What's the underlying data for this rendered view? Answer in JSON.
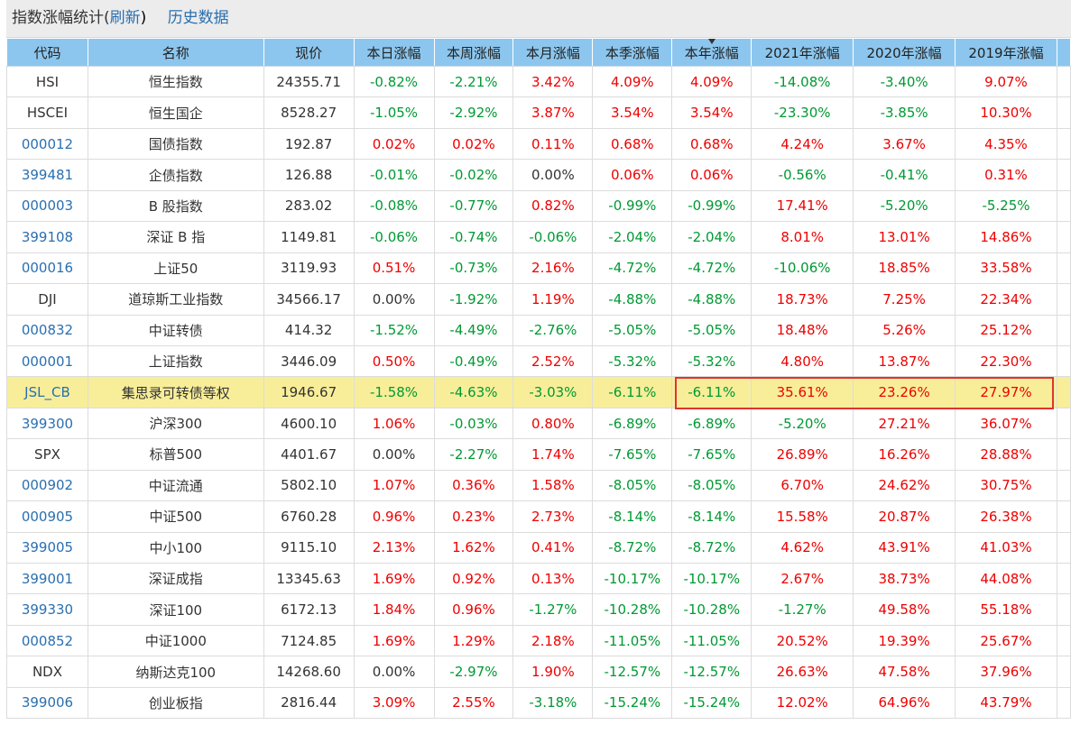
{
  "header": {
    "title_parts": [
      "指数涨幅统计(",
      "刷新",
      ")"
    ],
    "history": "历史数据"
  },
  "table": {
    "columns": [
      "代码",
      "名称",
      "现价",
      "本日涨幅",
      "本周涨幅",
      "本月涨幅",
      "本季涨幅",
      "本年涨幅",
      "2021年涨幅",
      "2020年涨幅",
      "2019年涨幅"
    ],
    "sorted_column": 7,
    "highlight_row": 10,
    "rows": [
      [
        "HSI",
        "恒生指数",
        "24355.71",
        "-0.82%",
        "-2.21%",
        "3.42%",
        "4.09%",
        "4.09%",
        "-14.08%",
        "-3.40%",
        "9.07%"
      ],
      [
        "HSCEI",
        "恒生国企",
        "8528.27",
        "-1.05%",
        "-2.92%",
        "3.87%",
        "3.54%",
        "3.54%",
        "-23.30%",
        "-3.85%",
        "10.30%"
      ],
      [
        "000012",
        "国债指数",
        "192.87",
        "0.02%",
        "0.02%",
        "0.11%",
        "0.68%",
        "0.68%",
        "4.24%",
        "3.67%",
        "4.35%"
      ],
      [
        "399481",
        "企债指数",
        "126.88",
        "-0.01%",
        "-0.02%",
        "0.00%",
        "0.06%",
        "0.06%",
        "-0.56%",
        "-0.41%",
        "0.31%"
      ],
      [
        "000003",
        "B 股指数",
        "283.02",
        "-0.08%",
        "-0.77%",
        "0.82%",
        "-0.99%",
        "-0.99%",
        "17.41%",
        "-5.20%",
        "-5.25%"
      ],
      [
        "399108",
        "深证 B 指",
        "1149.81",
        "-0.06%",
        "-0.74%",
        "-0.06%",
        "-2.04%",
        "-2.04%",
        "8.01%",
        "13.01%",
        "14.86%"
      ],
      [
        "000016",
        "上证50",
        "3119.93",
        "0.51%",
        "-0.73%",
        "2.16%",
        "-4.72%",
        "-4.72%",
        "-10.06%",
        "18.85%",
        "33.58%"
      ],
      [
        "DJI",
        "道琼斯工业指数",
        "34566.17",
        "0.00%",
        "-1.92%",
        "1.19%",
        "-4.88%",
        "-4.88%",
        "18.73%",
        "7.25%",
        "22.34%"
      ],
      [
        "000832",
        "中证转债",
        "414.32",
        "-1.52%",
        "-4.49%",
        "-2.76%",
        "-5.05%",
        "-5.05%",
        "18.48%",
        "5.26%",
        "25.12%"
      ],
      [
        "000001",
        "上证指数",
        "3446.09",
        "0.50%",
        "-0.49%",
        "2.52%",
        "-5.32%",
        "-5.32%",
        "4.80%",
        "13.87%",
        "22.30%"
      ],
      [
        "JSL_CB",
        "集思录可转债等权",
        "1946.67",
        "-1.58%",
        "-4.63%",
        "-3.03%",
        "-6.11%",
        "-6.11%",
        "35.61%",
        "23.26%",
        "27.97%"
      ],
      [
        "399300",
        "沪深300",
        "4600.10",
        "1.06%",
        "-0.03%",
        "0.80%",
        "-6.89%",
        "-6.89%",
        "-5.20%",
        "27.21%",
        "36.07%"
      ],
      [
        "SPX",
        "标普500",
        "4401.67",
        "0.00%",
        "-2.27%",
        "1.74%",
        "-7.65%",
        "-7.65%",
        "26.89%",
        "16.26%",
        "28.88%"
      ],
      [
        "000902",
        "中证流通",
        "5802.10",
        "1.07%",
        "0.36%",
        "1.58%",
        "-8.05%",
        "-8.05%",
        "6.70%",
        "24.62%",
        "30.75%"
      ],
      [
        "000905",
        "中证500",
        "6760.28",
        "0.96%",
        "0.23%",
        "2.73%",
        "-8.14%",
        "-8.14%",
        "15.58%",
        "20.87%",
        "26.38%"
      ],
      [
        "399005",
        "中小100",
        "9115.10",
        "2.13%",
        "1.62%",
        "0.41%",
        "-8.72%",
        "-8.72%",
        "4.62%",
        "43.91%",
        "41.03%"
      ],
      [
        "399001",
        "深证成指",
        "13345.63",
        "1.69%",
        "0.92%",
        "0.13%",
        "-10.17%",
        "-10.17%",
        "2.67%",
        "38.73%",
        "44.08%"
      ],
      [
        "399330",
        "深证100",
        "6172.13",
        "1.84%",
        "0.96%",
        "-1.27%",
        "-10.28%",
        "-10.28%",
        "-1.27%",
        "49.58%",
        "55.18%"
      ],
      [
        "000852",
        "中证1000",
        "7124.85",
        "1.69%",
        "1.29%",
        "2.18%",
        "-11.05%",
        "-11.05%",
        "20.52%",
        "19.39%",
        "25.67%"
      ],
      [
        "NDX",
        "纳斯达克100",
        "14268.60",
        "0.00%",
        "-2.97%",
        "1.90%",
        "-12.57%",
        "-12.57%",
        "26.63%",
        "47.58%",
        "37.96%"
      ],
      [
        "399006",
        "创业板指",
        "2816.44",
        "3.09%",
        "2.55%",
        "-3.18%",
        "-15.24%",
        "-15.24%",
        "12.02%",
        "64.96%",
        "43.79%"
      ]
    ]
  }
}
